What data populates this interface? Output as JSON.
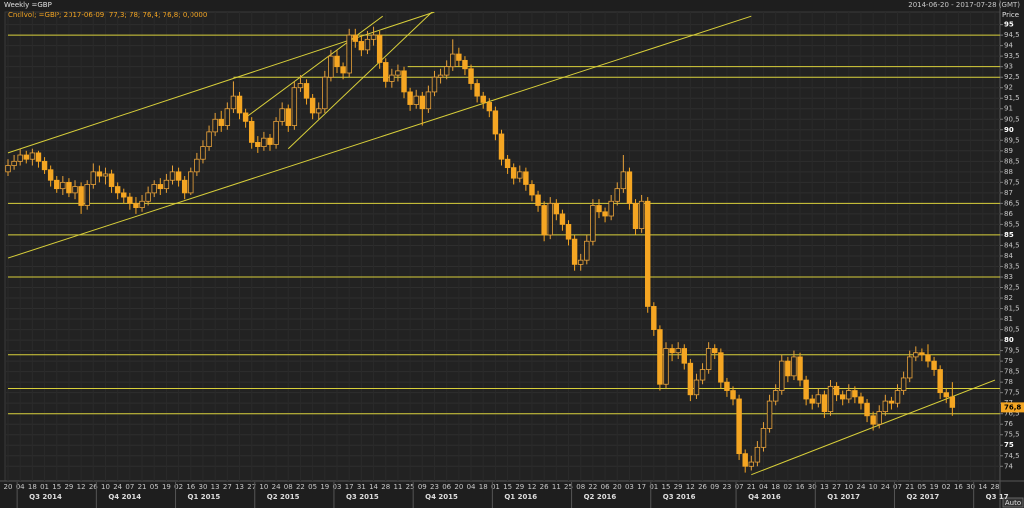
{
  "chart_data": {
    "type": "candlestick",
    "title": "Weekly =GBP",
    "subtitle": "Cndlvol; =GBP; 2017-06-09; 77,3; 78; 76,4; 76,8; 0,0000",
    "date_range": "2014-06-20 - 2017-07-28 (GMT)",
    "y_label": "Price",
    "scale_mode": "Auto",
    "last_value_label": "76,8",
    "up_color": "#e8a23a",
    "down_color": "#f5a623",
    "line_color": "#d8cf3a",
    "grid": true,
    "categories": [
      "20",
      null,
      "04",
      null,
      "18",
      null,
      "01",
      null,
      "15",
      null,
      "29",
      null,
      "12",
      null,
      "26",
      null,
      "10",
      null,
      "24",
      null,
      "07",
      null,
      "21",
      null,
      "05",
      null,
      "19",
      null,
      "02",
      null,
      "16",
      null,
      "30",
      null,
      "13",
      null,
      "27",
      null,
      "13",
      null,
      "27",
      null,
      "10",
      null,
      "24",
      null,
      "08",
      null,
      "22",
      null,
      "05",
      null,
      "19",
      null,
      "03",
      null,
      "17",
      null,
      "31",
      null,
      "14",
      null,
      "28",
      null,
      "11",
      null,
      "25",
      null,
      "09",
      null,
      "23",
      null,
      "06",
      null,
      "20",
      null,
      "04",
      null,
      "18",
      null,
      "01",
      null,
      "15",
      null,
      "29",
      null,
      "12",
      null,
      "26",
      null,
      "11",
      null,
      "25",
      null,
      "08",
      null,
      "22",
      null,
      "06",
      null,
      "20",
      null,
      "03",
      null,
      "17",
      null,
      "01",
      null,
      "15",
      null,
      "29",
      null,
      "12",
      null,
      "26",
      null,
      "09",
      null,
      "23",
      null,
      "07",
      null,
      "21",
      null,
      "04",
      null,
      "18",
      null,
      "02",
      null,
      "16",
      null,
      "30",
      null,
      "13",
      null,
      "27",
      null,
      "10",
      null,
      "24",
      null,
      "10",
      null,
      "24",
      null,
      "07",
      null,
      "21",
      null,
      "05",
      null,
      "19",
      null,
      "02",
      null,
      "16",
      null,
      "30",
      null,
      "14",
      null,
      "28"
    ],
    "open": [
      88.0,
      88.3,
      88.5,
      88.8,
      88.6,
      88.9,
      88.5,
      88.1,
      87.6,
      87.2,
      87.5,
      87.0,
      87.3,
      86.4,
      87.4,
      88.0,
      87.8,
      87.9,
      87.3,
      87.0,
      86.8,
      86.5,
      86.3,
      86.6,
      87.0,
      87.4,
      87.2,
      87.6,
      88.0,
      87.6,
      87.0,
      88.0,
      88.6,
      89.2,
      89.9,
      90.5,
      90.2,
      91.0,
      91.6,
      90.8,
      90.4,
      89.4,
      89.2,
      89.6,
      89.3,
      90.4,
      91.0,
      90.2,
      92.0,
      92.2,
      91.5,
      90.8,
      91.0,
      92.5,
      93.5,
      93.0,
      92.7,
      94.5,
      94.2,
      93.8,
      94.3,
      94.5,
      93.2,
      92.3,
      92.6,
      92.8,
      91.8,
      91.2,
      91.6,
      91.0,
      91.8,
      92.5,
      92.6,
      93.0,
      93.6,
      93.3,
      92.9,
      92.2,
      91.6,
      91.3,
      90.9,
      89.8,
      88.6,
      88.2,
      87.7,
      88.0,
      87.4,
      86.9,
      86.4,
      85.0,
      86.5,
      86.0,
      85.5,
      84.8,
      83.6,
      83.8,
      84.7,
      86.4,
      86.1,
      85.9,
      86.6,
      87.2,
      88.0,
      86.5,
      85.3,
      86.6,
      81.6,
      80.5,
      77.9,
      79.6,
      79.4,
      79.6,
      78.9,
      77.4,
      78.1,
      78.6,
      79.6,
      79.4,
      78.0,
      77.6,
      77.2,
      74.6,
      74.0,
      74.2,
      74.9,
      75.8,
      77.1,
      77.6,
      79.0,
      78.3,
      79.2,
      78.1,
      77.2,
      77.0,
      77.4,
      76.6,
      77.8,
      77.4,
      77.2,
      77.6,
      77.3,
      77.0,
      76.4,
      76.0,
      76.6,
      77.1,
      77.0,
      77.6,
      78.2,
      79.2,
      79.4,
      79.3,
      79.0,
      78.6,
      77.5,
      77.3,
      null,
      null,
      null,
      null,
      null,
      null,
      null
    ],
    "high": [
      88.6,
      88.8,
      89.1,
      89.0,
      89.1,
      89.0,
      88.7,
      88.3,
      87.8,
      87.8,
      87.7,
      87.6,
      87.5,
      87.6,
      88.4,
      88.3,
      88.2,
      88.1,
      87.5,
      87.2,
      87.0,
      86.8,
      86.9,
      87.3,
      87.6,
      87.7,
      87.9,
      88.3,
      88.2,
      87.8,
      88.2,
      88.9,
      89.5,
      90.2,
      90.8,
      90.9,
      91.3,
      92.3,
      91.8,
      91.0,
      90.6,
      89.7,
      89.9,
      89.8,
      90.6,
      91.3,
      91.2,
      92.3,
      92.6,
      92.4,
      91.7,
      91.3,
      92.8,
      93.8,
      93.8,
      93.2,
      94.8,
      94.8,
      94.5,
      94.7,
      94.9,
      94.7,
      93.4,
      92.9,
      93.1,
      93.0,
      92.0,
      91.9,
      91.8,
      92.1,
      92.8,
      92.9,
      93.3,
      94.3,
      93.9,
      93.5,
      93.1,
      92.4,
      91.8,
      91.5,
      91.1,
      90.0,
      88.8,
      88.4,
      88.3,
      88.2,
      87.6,
      87.1,
      86.6,
      86.8,
      86.7,
      86.2,
      85.7,
      85.0,
      84.1,
      85.0,
      86.7,
      86.7,
      86.3,
      86.9,
      87.5,
      88.8,
      88.2,
      86.7,
      86.9,
      86.8,
      81.8,
      80.7,
      79.9,
      79.8,
      79.9,
      79.8,
      79.1,
      78.4,
      78.9,
      79.9,
      79.8,
      79.6,
      78.2,
      77.8,
      77.4,
      74.8,
      74.5,
      75.2,
      76.1,
      77.4,
      77.9,
      79.3,
      79.2,
      79.5,
      79.4,
      78.3,
      77.4,
      77.7,
      77.6,
      78.1,
      78.0,
      77.6,
      77.9,
      77.8,
      77.5,
      77.2,
      76.6,
      76.9,
      77.4,
      77.3,
      77.9,
      78.5,
      79.5,
      79.7,
      79.6,
      79.8,
      79.2,
      78.8,
      77.7,
      78,
      null,
      null,
      null,
      null,
      null,
      null,
      null
    ],
    "low": [
      87.8,
      88.1,
      88.3,
      88.4,
      88.3,
      88.2,
      87.9,
      87.3,
      87.0,
      86.9,
      86.8,
      86.7,
      86.0,
      86.2,
      87.2,
      87.5,
      87.4,
      87.0,
      86.7,
      86.5,
      86.2,
      86.0,
      86.1,
      86.4,
      86.8,
      86.9,
      87.0,
      87.4,
      87.3,
      86.7,
      86.9,
      87.8,
      88.4,
      89.0,
      89.7,
      89.9,
      90.0,
      90.8,
      90.5,
      90.1,
      89.1,
      88.9,
      89.0,
      89.0,
      89.1,
      90.2,
      89.9,
      90.0,
      91.8,
      91.2,
      90.5,
      90.5,
      90.8,
      92.3,
      92.7,
      92.4,
      92.5,
      93.9,
      93.5,
      93.6,
      94.0,
      92.9,
      92.0,
      92.0,
      92.3,
      91.5,
      90.9,
      91.0,
      90.2,
      90.8,
      91.6,
      92.2,
      92.4,
      92.8,
      93.0,
      92.6,
      91.9,
      91.3,
      91.0,
      90.6,
      89.5,
      88.3,
      87.9,
      87.4,
      87.5,
      87.1,
      86.6,
      86.1,
      84.7,
      84.8,
      85.7,
      85.2,
      84.5,
      83.3,
      83.3,
      83.6,
      84.5,
      85.8,
      85.6,
      85.7,
      86.4,
      87.0,
      86.2,
      85.0,
      85.1,
      81.3,
      80.2,
      77.6,
      77.7,
      79.0,
      79.1,
      78.6,
      77.1,
      77.2,
      77.9,
      78.4,
      79.1,
      77.7,
      77.3,
      76.9,
      74.3,
      73.7,
      73.8,
      74.0,
      74.7,
      75.6,
      76.9,
      77.4,
      78.0,
      78.1,
      77.8,
      76.9,
      76.7,
      76.8,
      76.3,
      76.4,
      77.1,
      76.9,
      77.0,
      77.0,
      76.7,
      76.1,
      75.7,
      75.8,
      76.4,
      76.7,
      76.8,
      77.4,
      78.0,
      79.0,
      79.0,
      78.7,
      78.3,
      77.2,
      77.0,
      76.4,
      null,
      null,
      null,
      null,
      null,
      null,
      null
    ],
    "close": [
      88.3,
      88.5,
      88.8,
      88.6,
      88.9,
      88.5,
      88.1,
      87.6,
      87.2,
      87.5,
      87.0,
      87.3,
      86.4,
      87.4,
      88.0,
      87.8,
      87.9,
      87.3,
      87.0,
      86.8,
      86.5,
      86.3,
      86.6,
      87.0,
      87.4,
      87.2,
      87.6,
      88.0,
      87.6,
      87.0,
      88.0,
      88.6,
      89.2,
      89.9,
      90.5,
      90.2,
      91.0,
      91.6,
      90.8,
      90.4,
      89.4,
      89.2,
      89.6,
      89.3,
      90.4,
      91.0,
      90.2,
      92.0,
      92.2,
      91.5,
      90.8,
      91.0,
      92.5,
      93.5,
      93.0,
      92.7,
      94.5,
      94.2,
      93.8,
      94.3,
      94.5,
      93.2,
      92.3,
      92.6,
      92.8,
      91.8,
      91.2,
      91.6,
      91.0,
      91.8,
      92.5,
      92.6,
      93.0,
      93.6,
      93.3,
      92.9,
      92.2,
      91.6,
      91.3,
      90.9,
      89.8,
      88.6,
      88.2,
      87.7,
      88.0,
      87.4,
      86.9,
      86.4,
      85.0,
      86.5,
      86.0,
      85.5,
      84.8,
      83.6,
      83.8,
      84.7,
      86.4,
      86.1,
      85.9,
      86.6,
      87.2,
      88.0,
      86.5,
      85.3,
      86.6,
      81.6,
      80.5,
      77.9,
      79.6,
      79.4,
      79.6,
      78.9,
      77.4,
      78.1,
      78.6,
      79.6,
      79.4,
      78.0,
      77.6,
      77.2,
      74.6,
      74.0,
      74.2,
      74.9,
      75.8,
      77.1,
      77.6,
      79.0,
      78.3,
      79.2,
      78.1,
      77.2,
      77.0,
      77.4,
      76.6,
      77.8,
      77.4,
      77.2,
      77.6,
      77.3,
      77.0,
      76.4,
      76.0,
      76.6,
      77.1,
      77.0,
      77.6,
      78.2,
      79.2,
      79.4,
      79.3,
      79.0,
      78.6,
      77.5,
      77.3,
      76.8,
      null,
      null,
      null,
      null,
      null,
      null,
      null
    ],
    "quarters": [
      {
        "label": "Q3 2014",
        "x": 2
      },
      {
        "label": "Q4 2014",
        "x": 15
      },
      {
        "label": "Q1 2015",
        "x": 28
      },
      {
        "label": "Q2 2015",
        "x": 41
      },
      {
        "label": "Q3 2015",
        "x": 54
      },
      {
        "label": "Q4 2015",
        "x": 67
      },
      {
        "label": "Q1 2016",
        "x": 80
      },
      {
        "label": "Q2 2016",
        "x": 93
      },
      {
        "label": "Q3 2016",
        "x": 106
      },
      {
        "label": "Q4 2016",
        "x": 120
      },
      {
        "label": "Q1 2017",
        "x": 133
      },
      {
        "label": "Q2 2017",
        "x": 146
      },
      {
        "label": "Q3 17",
        "x": 159
      }
    ],
    "hlines": [
      {
        "y": 94.5,
        "from": 0
      },
      {
        "y": 93,
        "from": 65.6
      },
      {
        "y": 92.5,
        "from": 37
      },
      {
        "y": 86.5,
        "from": 0
      },
      {
        "y": 85,
        "from": 0
      },
      {
        "y": 83,
        "from": 0
      },
      {
        "y": 79.3,
        "from": 0
      },
      {
        "y": 77.7,
        "from": 0
      },
      {
        "y": 76.5,
        "from": 0
      }
    ],
    "trendlines": [
      {
        "x": [
          0,
          70
        ],
        "y": [
          88.9,
          95.6
        ]
      },
      {
        "x": [
          0,
          122
        ],
        "y": [
          83.9,
          95.4
        ]
      },
      {
        "x": [
          39.1,
          61.5
        ],
        "y": [
          90.6,
          95.4
        ]
      },
      {
        "x": [
          46,
          69.6
        ],
        "y": [
          89.1,
          95.6
        ]
      },
      {
        "x": [
          122,
          162
        ],
        "y": [
          73.6,
          78.1
        ]
      }
    ],
    "ylim": [
      73.3,
      95.6
    ],
    "yticks": [
      74,
      {
        "value": 74.5,
        "label": "74,5"
      },
      75,
      {
        "value": 75.5,
        "label": "75,5"
      },
      76,
      {
        "value": 76.5,
        "label": "76,5"
      },
      77,
      {
        "value": 77.5,
        "label": "77,5"
      },
      78,
      {
        "value": 78.5,
        "label": "78,5"
      },
      79,
      {
        "value": 79.5,
        "label": "79,5"
      },
      80,
      {
        "value": 80.5,
        "label": "80,5"
      },
      81,
      {
        "value": 81.5,
        "label": "81,5"
      },
      82,
      {
        "value": 82.5,
        "label": "82,5"
      },
      83,
      {
        "value": 83.5,
        "label": "83,5"
      },
      84,
      {
        "value": 84.5,
        "label": "84,5"
      },
      85,
      {
        "value": 85.5,
        "label": "85,5"
      },
      86,
      {
        "value": 86.5,
        "label": "86,5"
      },
      87,
      {
        "value": 87.5,
        "label": "87,5"
      },
      88,
      {
        "value": 88.5,
        "label": "88,5"
      },
      89,
      {
        "value": 89.5,
        "label": "89,5"
      },
      90,
      {
        "value": 90.5,
        "label": "90,5"
      },
      91,
      {
        "value": 91.5,
        "label": "91,5"
      },
      92,
      {
        "value": 92.5,
        "label": "92,5"
      },
      93,
      {
        "value": 93.5,
        "label": "93,5"
      },
      94,
      {
        "value": 94.5,
        "label": "94,5"
      },
      95
    ]
  }
}
